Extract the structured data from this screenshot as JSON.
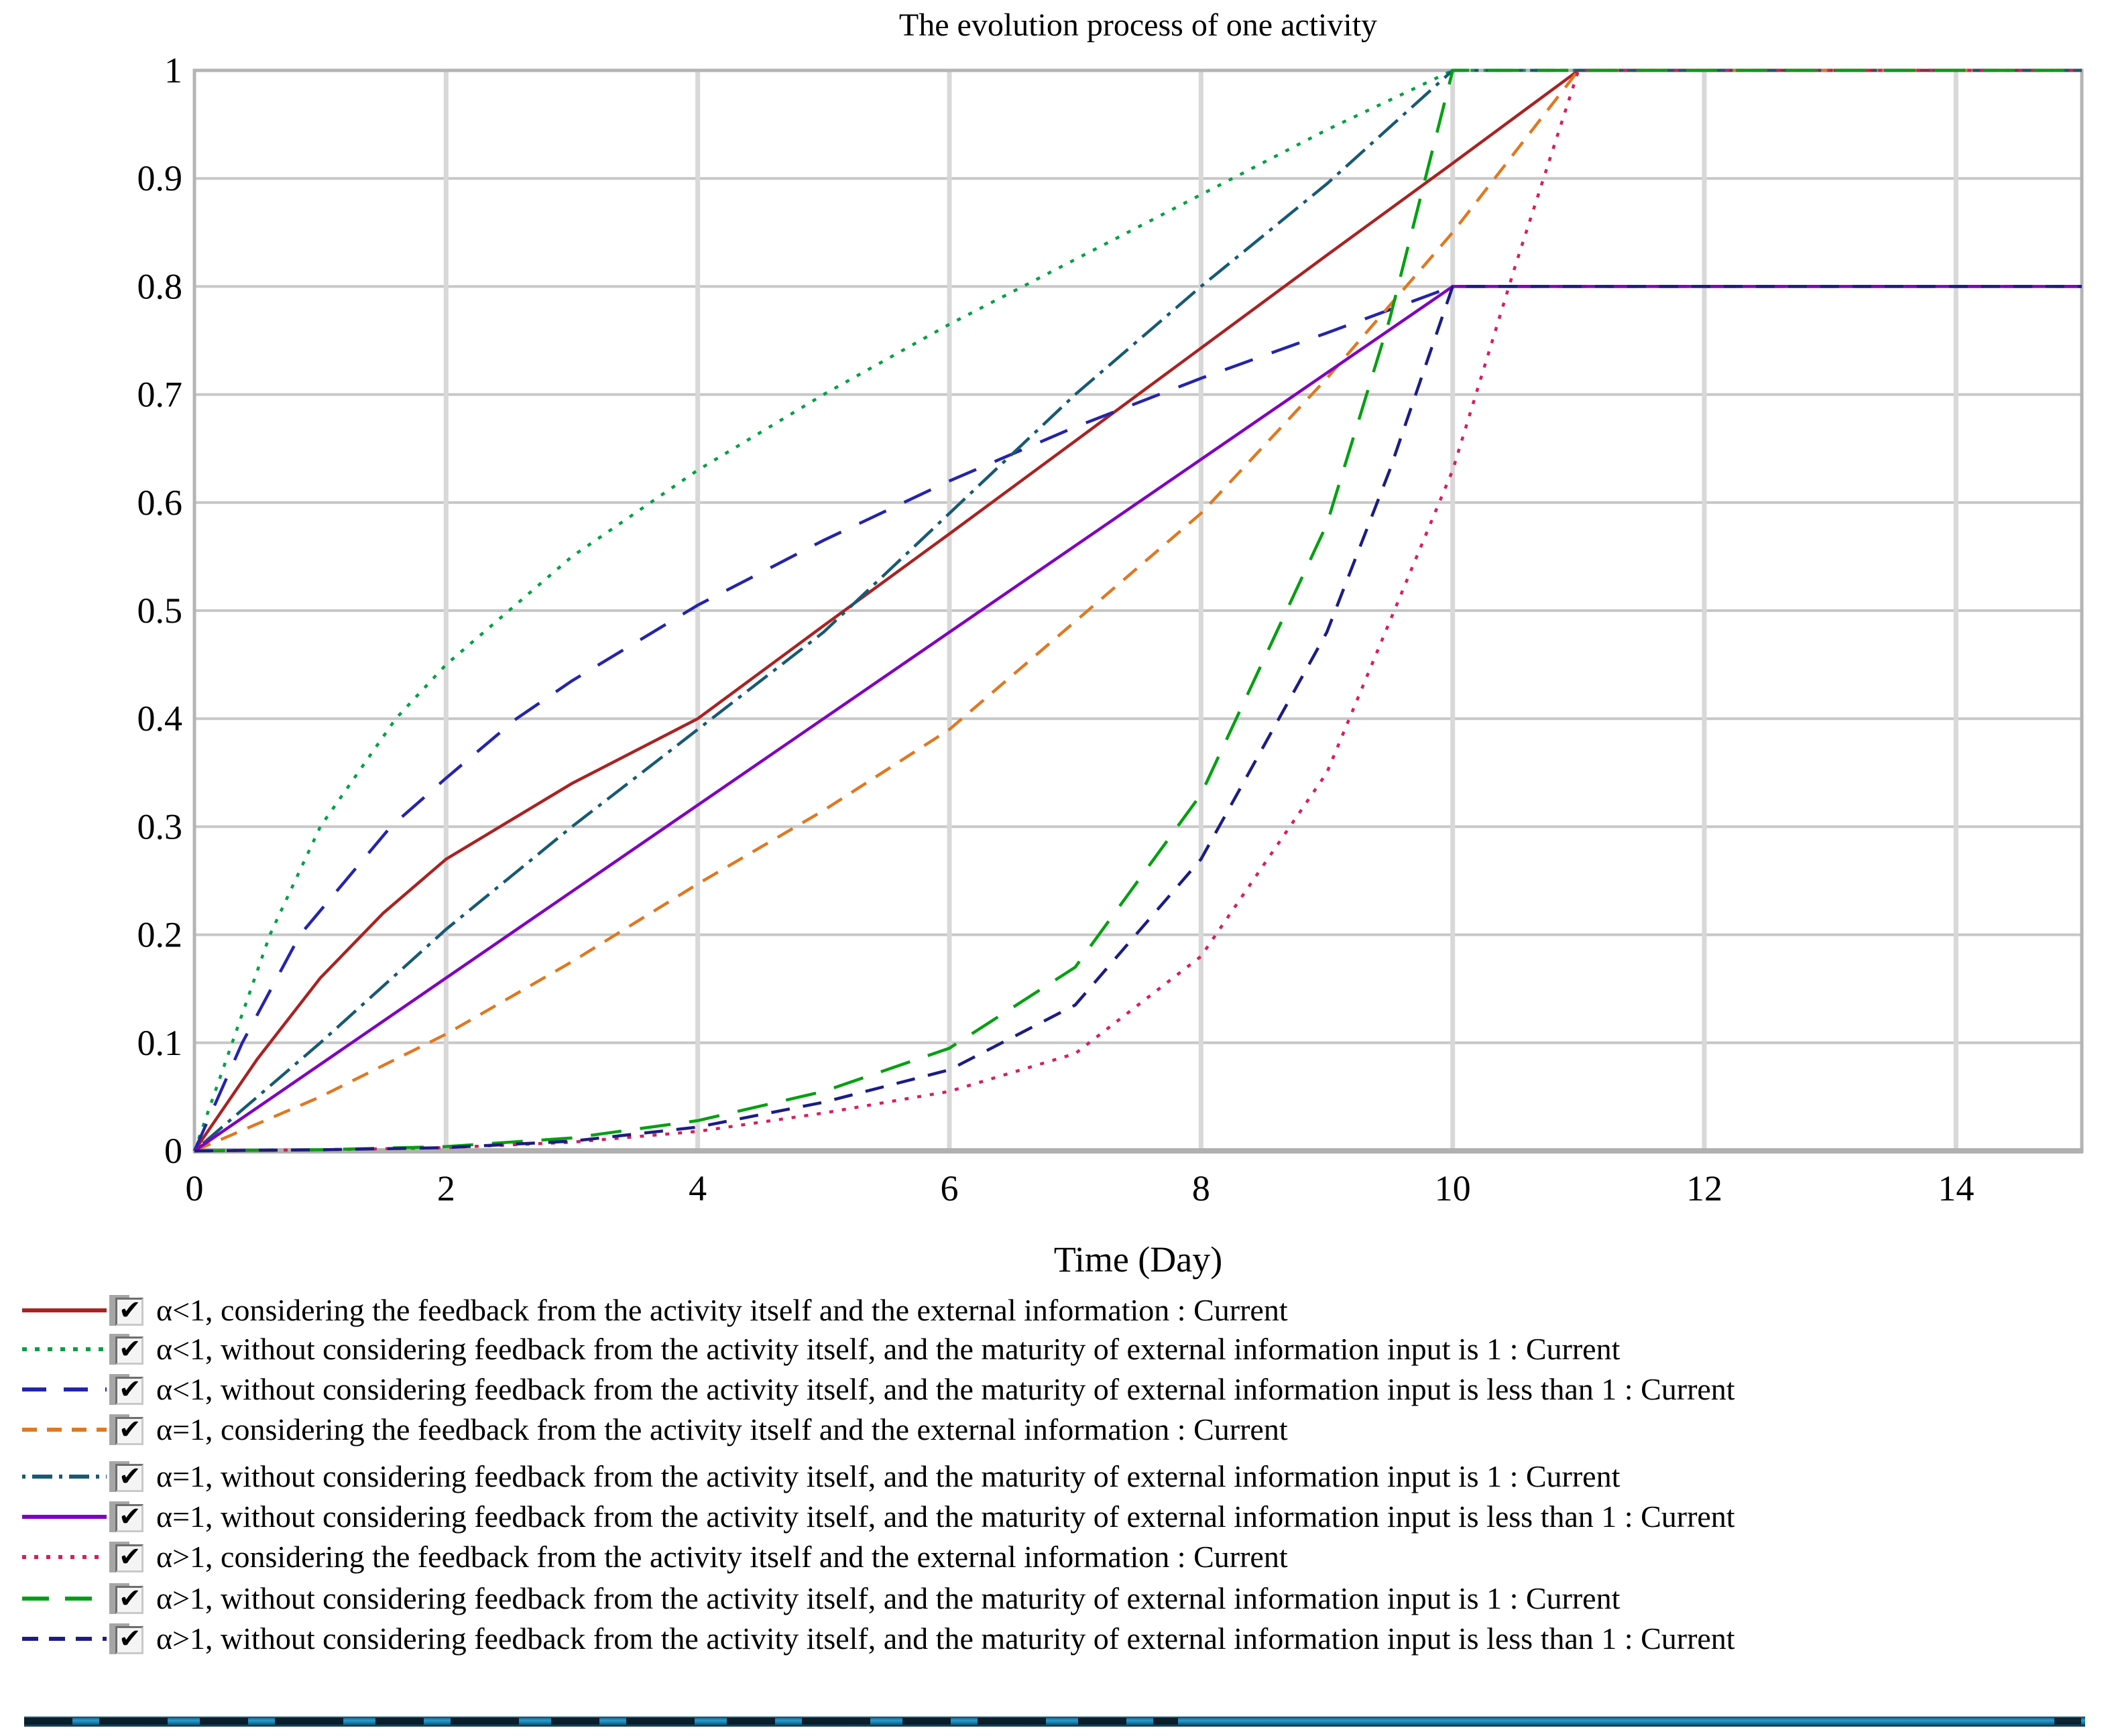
{
  "chart": {
    "title": "The evolution process of one activity",
    "xlabel": "Time (Day)"
  },
  "chart_data": {
    "type": "line",
    "title": "The evolution process of one activity",
    "xlabel": "Time (Day)",
    "ylabel": "",
    "xlim": [
      0,
      15
    ],
    "ylim": [
      0,
      1
    ],
    "grid": true,
    "legend_position": "bottom",
    "x_ticks": [
      0,
      2,
      4,
      6,
      8,
      10,
      12,
      14
    ],
    "y_ticks": [
      "0",
      "0.1",
      "0.2",
      "0.3",
      "0.4",
      "0.5",
      "0.6",
      "0.7",
      "0.8",
      "0.9",
      "1"
    ],
    "y_tick_values": [
      0,
      0.1,
      0.2,
      0.3,
      0.4,
      0.5,
      0.6,
      0.7,
      0.8,
      0.9,
      1
    ],
    "series": [
      {
        "label": "α<1, considering the feedback from the activity itself and the external information : Current",
        "checked": true,
        "color": "#aa2222",
        "style": "solid",
        "dash": "",
        "legend_dash": "",
        "points": [
          [
            0,
            0
          ],
          [
            0.5,
            0.085
          ],
          [
            1,
            0.16
          ],
          [
            1.5,
            0.22
          ],
          [
            2,
            0.27
          ],
          [
            3,
            0.34
          ],
          [
            4,
            0.4
          ],
          [
            5,
            0.486
          ],
          [
            6,
            0.571
          ],
          [
            7,
            0.657
          ],
          [
            8,
            0.743
          ],
          [
            9,
            0.829
          ],
          [
            10,
            0.914
          ],
          [
            11,
            1
          ],
          [
            15,
            1
          ]
        ]
      },
      {
        "label": "α<1, without considering feedback from the activity itself, and the maturity of external information input is 1 : Current",
        "checked": true,
        "color": "#00a044",
        "style": "dotted",
        "dash": "6 13",
        "legend_dash": "7 12",
        "points": [
          [
            0,
            0
          ],
          [
            0.3,
            0.1
          ],
          [
            0.6,
            0.2
          ],
          [
            1,
            0.3
          ],
          [
            1.6,
            0.4
          ],
          [
            2,
            0.45
          ],
          [
            3,
            0.55
          ],
          [
            4,
            0.63
          ],
          [
            5,
            0.7
          ],
          [
            6,
            0.765
          ],
          [
            7,
            0.825
          ],
          [
            8,
            0.885
          ],
          [
            9,
            0.945
          ],
          [
            10,
            1
          ],
          [
            15,
            1
          ]
        ]
      },
      {
        "label": "α<1, without considering feedback from the activity itself, and the maturity of external information input is less than 1 : Current",
        "checked": true,
        "color": "#2424ac",
        "style": "long-dash",
        "dash": "44 30",
        "legend_dash": "36 26",
        "points": [
          [
            0,
            0
          ],
          [
            0.38,
            0.1
          ],
          [
            0.84,
            0.2
          ],
          [
            1.56,
            0.3
          ],
          [
            2,
            0.345
          ],
          [
            2.56,
            0.4
          ],
          [
            3,
            0.435
          ],
          [
            4,
            0.505
          ],
          [
            5,
            0.565
          ],
          [
            6,
            0.62
          ],
          [
            7,
            0.67
          ],
          [
            8,
            0.715
          ],
          [
            9,
            0.757
          ],
          [
            10,
            0.8
          ],
          [
            15,
            0.8
          ]
        ]
      },
      {
        "label": "α=1, considering the feedback from the activity itself and the external information : Current",
        "checked": true,
        "color": "#e07820",
        "style": "dashed",
        "dash": "26 17",
        "legend_dash": "22 15",
        "points": [
          [
            0,
            0
          ],
          [
            1,
            0.05
          ],
          [
            2,
            0.108
          ],
          [
            3,
            0.175
          ],
          [
            4,
            0.247
          ],
          [
            5,
            0.315
          ],
          [
            6,
            0.39
          ],
          [
            7,
            0.49
          ],
          [
            8,
            0.59
          ],
          [
            9,
            0.715
          ],
          [
            10,
            0.85
          ],
          [
            11,
            1
          ],
          [
            15,
            1
          ]
        ]
      },
      {
        "label": "α=1, without considering feedback from the activity itself, and the maturity of external information input is 1 : Current",
        "checked": true,
        "color": "#175a74",
        "style": "dash-dot",
        "dash": "6 11 38 11",
        "legend_dash": "5 10 30 10",
        "points": [
          [
            0,
            0
          ],
          [
            1,
            0.1
          ],
          [
            2,
            0.205
          ],
          [
            3,
            0.3
          ],
          [
            4,
            0.39
          ],
          [
            5,
            0.48
          ],
          [
            6,
            0.59
          ],
          [
            7,
            0.7
          ],
          [
            8,
            0.8
          ],
          [
            9,
            0.895
          ],
          [
            10,
            1
          ],
          [
            15,
            1
          ]
        ]
      },
      {
        "label": "α=1, without considering feedback from the activity itself, and the maturity of external information input is less than 1 : Current",
        "checked": true,
        "color": "#8000c0",
        "style": "solid",
        "dash": "",
        "legend_dash": "",
        "points": [
          [
            0,
            0
          ],
          [
            5,
            0.4
          ],
          [
            10,
            0.8
          ],
          [
            15,
            0.8
          ]
        ]
      },
      {
        "label": "α>1, considering the feedback from the activity itself and the external information : Current",
        "checked": true,
        "color": "#d81d60",
        "style": "dotted",
        "dash": "6 13",
        "legend_dash": "6 12",
        "points": [
          [
            0,
            0
          ],
          [
            1,
            0.001
          ],
          [
            2,
            0.003
          ],
          [
            3,
            0.008
          ],
          [
            4,
            0.018
          ],
          [
            5,
            0.035
          ],
          [
            6,
            0.055
          ],
          [
            7,
            0.09
          ],
          [
            8,
            0.18
          ],
          [
            9,
            0.35
          ],
          [
            10,
            0.63
          ],
          [
            10.5,
            0.82
          ],
          [
            11,
            1
          ],
          [
            15,
            1
          ]
        ]
      },
      {
        "label": "α>1, without considering feedback from the activity itself, and the maturity of external information input is 1 : Current",
        "checked": true,
        "color": "#00a010",
        "style": "long-dash",
        "dash": "46 28",
        "legend_dash": "40 24",
        "points": [
          [
            0,
            0
          ],
          [
            1,
            0.001
          ],
          [
            2,
            0.004
          ],
          [
            3,
            0.012
          ],
          [
            4,
            0.028
          ],
          [
            5,
            0.055
          ],
          [
            6,
            0.095
          ],
          [
            7,
            0.17
          ],
          [
            8,
            0.33
          ],
          [
            9,
            0.58
          ],
          [
            9.5,
            0.77
          ],
          [
            10,
            1
          ],
          [
            15,
            1
          ]
        ]
      },
      {
        "label": "α>1, without considering feedback from the activity itself, and the maturity of external information input is less than 1 : Current",
        "checked": true,
        "color": "#1c1c84",
        "style": "dashed",
        "dash": "28 20",
        "legend_dash": "24 16",
        "points": [
          [
            0,
            0
          ],
          [
            1,
            0.001
          ],
          [
            2,
            0.003
          ],
          [
            3,
            0.009
          ],
          [
            4,
            0.022
          ],
          [
            5,
            0.045
          ],
          [
            6,
            0.075
          ],
          [
            7,
            0.135
          ],
          [
            8,
            0.27
          ],
          [
            9,
            0.48
          ],
          [
            9.5,
            0.63
          ],
          [
            10,
            0.8
          ],
          [
            15,
            0.8
          ]
        ]
      }
    ]
  },
  "legend": {
    "check_glyph": "✔"
  },
  "status_bar": {
    "base_color": "#1a7fae",
    "dark_color": "#0c2b3c"
  }
}
